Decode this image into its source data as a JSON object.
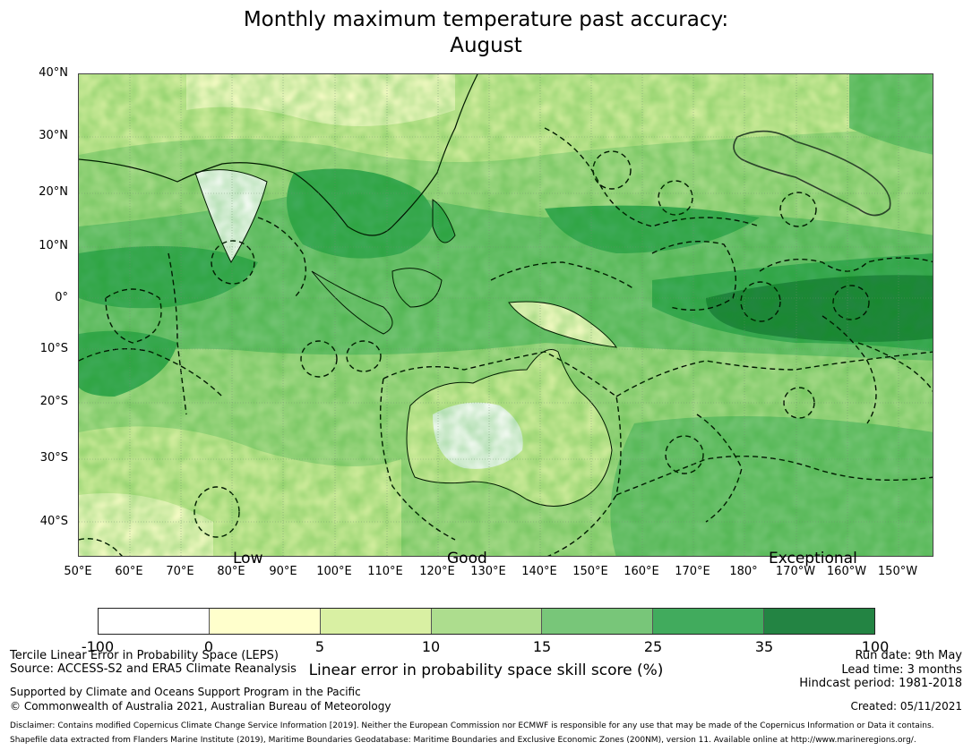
{
  "title_line1": "Monthly maximum temperature past accuracy:",
  "title_line2": "August",
  "lat_labels": [
    "40°N",
    "30°N",
    "20°N",
    "10°N",
    "0°",
    "10°S",
    "20°S",
    "30°S",
    "40°S"
  ],
  "lon_labels": [
    "50°E",
    "60°E",
    "70°E",
    "80°E",
    "90°E",
    "100°E",
    "110°E",
    "120°E",
    "130°E",
    "140°E",
    "150°E",
    "160°E",
    "170°E",
    "180°",
    "170°W",
    "160°W",
    "150°W"
  ],
  "class_labels": [
    "Low",
    "Good",
    "Exceptional"
  ],
  "colorbar": {
    "colors": [
      "#ffffff",
      "#ffffcc",
      "#d9f0a3",
      "#addd8e",
      "#78c679",
      "#41ab5d",
      "#238443"
    ],
    "ticks": [
      "-100",
      "0",
      "5",
      "10",
      "15",
      "25",
      "35",
      "100"
    ],
    "label": "Linear error in probability space skill score (%)"
  },
  "footer": {
    "method": "Tercile Linear Error in Probability Space (LEPS)",
    "source": "Source: ACCESS-S2 and ERA5 Climate Reanalysis",
    "support": "Supported by Climate and Oceans Support Program in the Pacific",
    "copyright": "© Commonwealth of Australia 2021, Australian Bureau of Meteorology",
    "run_date": "Run date: 9th May",
    "lead_time": "Lead time: 3 months",
    "hindcast": "Hindcast period: 1981-2018",
    "created": "Created: 05/11/2021",
    "disclaimer": "Disclaimer: Contains modified Copernicus Climate Change Service Information [2019]. Neither the European Commission nor ECMWF is responsible for any use that may be made of the Copernicus Information or Data it contains.",
    "shapefile": "Shapefile data extracted from Flanders Marine Institute (2019), Maritime Boundaries Geodatabase: Maritime Boundaries and Exclusive Economic Zones (200NM), version 11. Available online at http://www.marineregions.org/."
  }
}
